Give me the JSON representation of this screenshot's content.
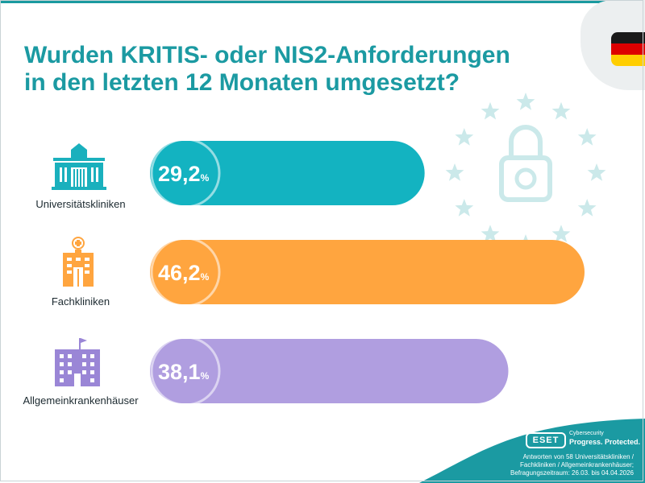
{
  "colors": {
    "accent": "#1b9aa2",
    "bar_teal": "#13b3c1",
    "bar_orange": "#ffa53f",
    "bar_purple": "#b09ee0",
    "icon_teal": "#1ab0bd",
    "icon_orange": "#ffa53f",
    "icon_purple": "#9a86d6",
    "flag_black": "#1a1a1a",
    "flag_red": "#dd0000",
    "flag_gold": "#ffce00",
    "stars": "#cbe9ea",
    "footer": "#1b9aa2"
  },
  "icons": {
    "category_1": "university-building-icon",
    "category_2": "clinic-building-icon",
    "category_3": "hospital-building-icon",
    "decoration": "eu-stars-padlock-icon",
    "flag": "german-flag-icon"
  },
  "chart_data": {
    "type": "bar",
    "orientation": "horizontal",
    "title": "Wurden KRITIS- oder NIS2-Anforderungen in den letzten 12 Monaten umgesetzt?",
    "title_lines": [
      "Wurden KRITIS- oder NIS2-Anforderungen",
      "in den letzten 12 Monaten umgesetzt?"
    ],
    "categories": [
      "Universitätskliniken",
      "Fachkliniken",
      "Allgemeinkrankenhäuser"
    ],
    "values": [
      29.2,
      46.2,
      38.1
    ],
    "data_labels": [
      {
        "number": "29,2",
        "unit": "%"
      },
      {
        "number": "46,2",
        "unit": "%"
      },
      {
        "number": "38,1",
        "unit": "%"
      }
    ],
    "xlim": [
      0,
      48
    ],
    "grid": false,
    "legend": "none"
  },
  "footer": {
    "logo": "ESET",
    "tagline_top": "Cybersecurity",
    "tagline_main": "Progress. Protected.",
    "source_lines": [
      "Antworten von 58 Universitätskliniken /",
      "Fachkliniken / Allgemeinkrankenhäuser;",
      "Befragungszeitraum: 26.03. bis 04.04.2026"
    ]
  }
}
